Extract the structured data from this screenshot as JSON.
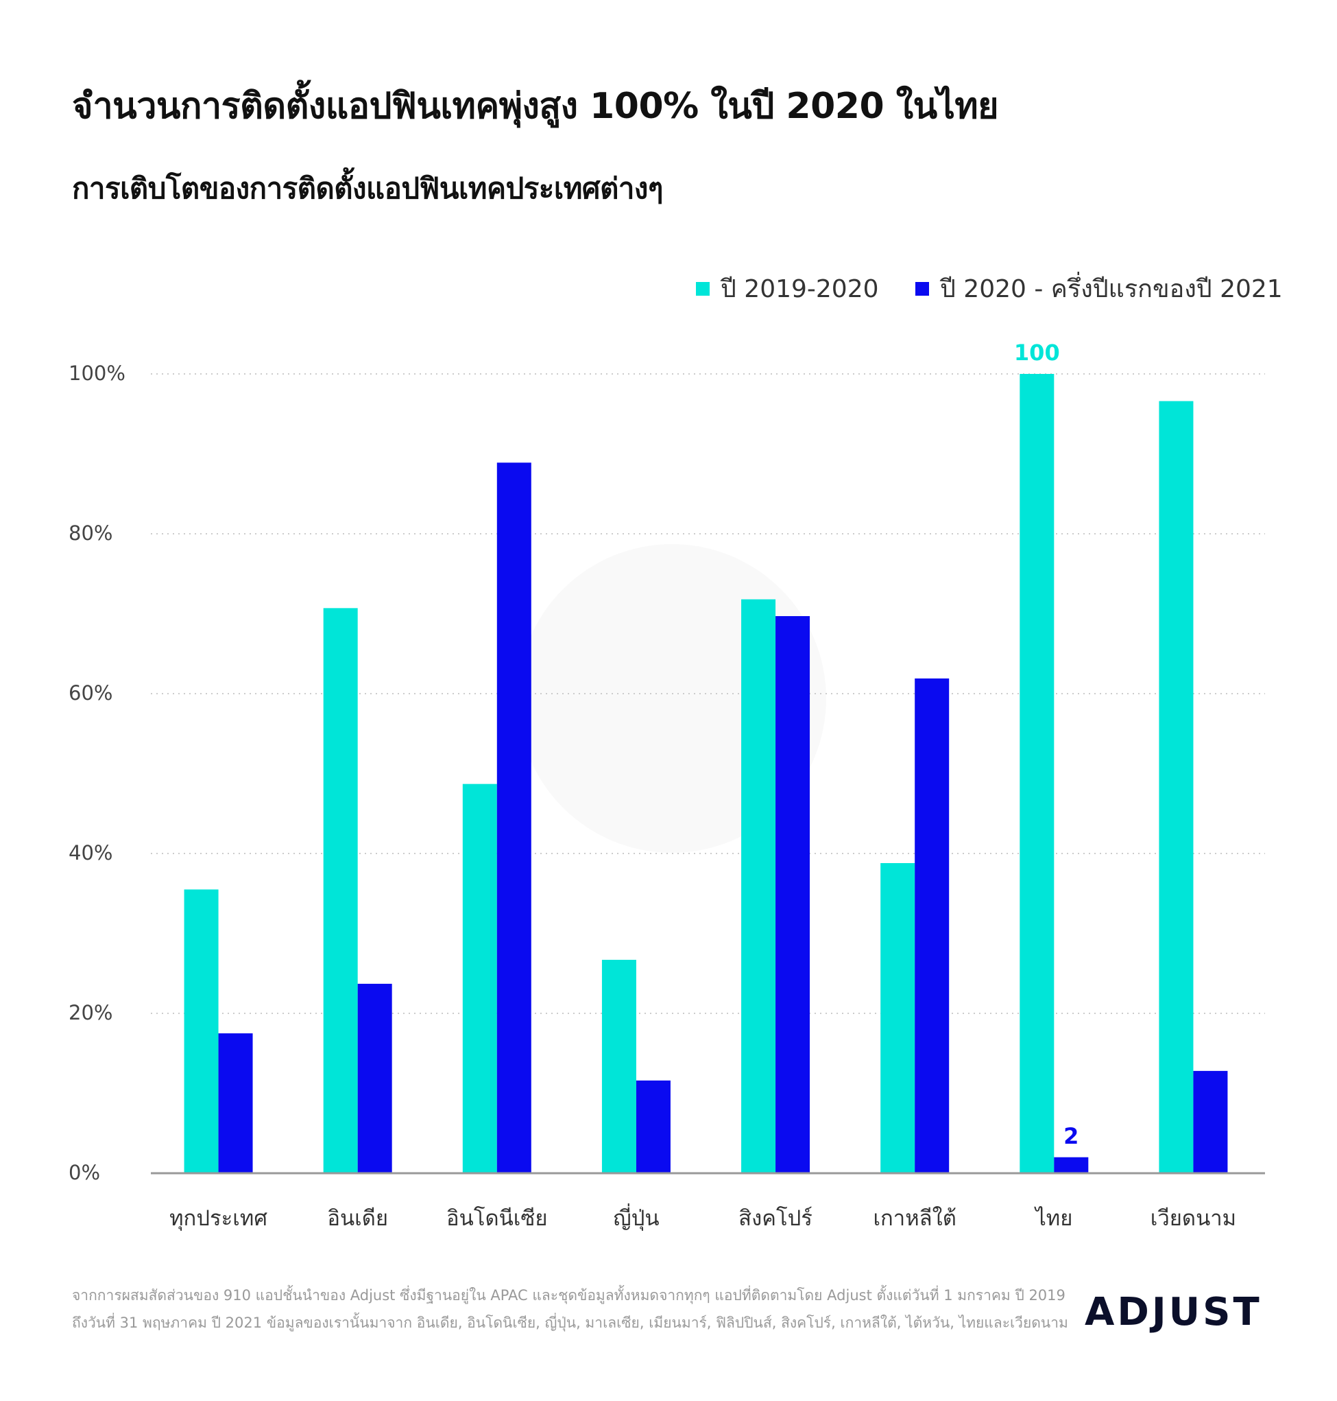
{
  "title": "จำนวนการติดตั้งแอปฟินเทคพุ่งสูง 100% ในปี 2020 ในไทย",
  "subtitle": "การเติบโตของการติดตั้งแอปฟินเทคประเทศต่างๆ",
  "colors": {
    "series_a": "#00e5d8",
    "series_b": "#0a0af0",
    "grid": "#cccccc",
    "axis": "#999999"
  },
  "chart_data": {
    "type": "bar",
    "categories": [
      "ทุกประเทศ",
      "อินเดีย",
      "อินโดนีเซีย",
      "ญี่ปุ่น",
      "สิงคโปร์",
      "เกาหลีใต้",
      "ไทย",
      "เวียดนาม"
    ],
    "series": [
      {
        "name": "ปี 2019-2020",
        "values": [
          35.5,
          70.7,
          48.7,
          26.7,
          71.8,
          38.8,
          100,
          96.6
        ]
      },
      {
        "name": "ปี 2020 - ครึ่งปีแรกของปี 2021",
        "values": [
          17.5,
          23.7,
          88.9,
          11.6,
          69.7,
          61.9,
          2,
          12.8
        ]
      }
    ],
    "yticks": [
      "0%",
      "20%",
      "40%",
      "60%",
      "80%",
      "100%"
    ],
    "ylim": [
      0,
      100
    ],
    "grid": true,
    "legend_position": "top-right",
    "data_labels": [
      {
        "category": "ไทย",
        "series": 0,
        "text": "100"
      },
      {
        "category": "ไทย",
        "series": 1,
        "text": "2"
      }
    ]
  },
  "footnote": [
    "จากการผสมสัดส่วนของ 910 แอปชั้นนำของ Adjust ซึ่งมีฐานอยู่ใน APAC และชุดข้อมูลทั้งหมดจากทุกๆ แอปที่ติดตามโดย Adjust ตั้งแต่วันที่ 1 มกราคม ปี 2019",
    "ถึงวันที่ 31 พฤษภาคม ปี 2021 ข้อมูลของเรานั้นมาจาก อินเดีย, อินโดนิเซีย, ญี่ปุ่น, มาเลเซีย, เมียนมาร์, ฟิลิปปินส์, สิงคโปร์, เกาหลีใต้, ไต้หวัน, ไทยและเวียดนาม"
  ],
  "logo_text": "ADJUST"
}
